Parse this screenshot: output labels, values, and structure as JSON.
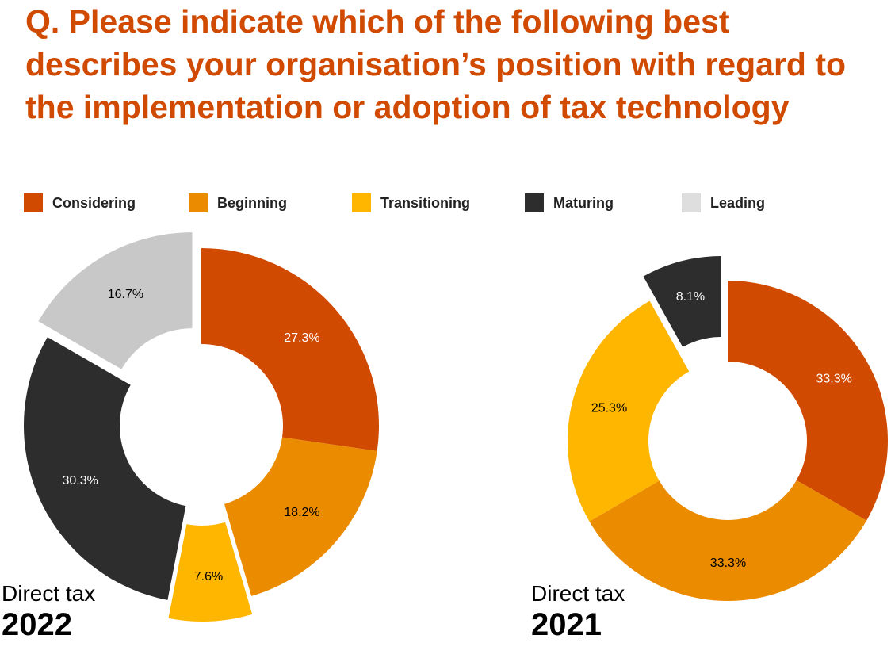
{
  "title": "Q. Please indicate which of the following best describes your organisation’s position with regard to the implementation or adoption of tax technology",
  "legend": [
    {
      "label": "Considering",
      "color": "#d04a02"
    },
    {
      "label": "Beginning",
      "color": "#eb8c00"
    },
    {
      "label": "Transitioning",
      "color": "#ffb600"
    },
    {
      "label": "Maturing",
      "color": "#2d2d2d"
    },
    {
      "label": "Leading",
      "color": "#dedede"
    }
  ],
  "charts": [
    {
      "subtitle": "Direct tax",
      "year": "2022"
    },
    {
      "subtitle": "Direct tax",
      "year": "2021"
    }
  ],
  "chart_data": [
    {
      "type": "pie",
      "title": "Direct tax 2022",
      "categories": [
        "Considering",
        "Beginning",
        "Transitioning",
        "Maturing",
        "Leading"
      ],
      "values": [
        27.3,
        18.2,
        7.6,
        30.3,
        16.7
      ],
      "labels": [
        "27.3%",
        "18.2%",
        "7.6%",
        "30.3%",
        "16.7%"
      ],
      "colors": [
        "#d04a02",
        "#eb8c00",
        "#ffb600",
        "#2d2d2d",
        "#c8c8c8"
      ],
      "label_colors": [
        "#ffffff",
        "#000000",
        "#000000",
        "#ffffff",
        "#000000"
      ],
      "exploded": [
        "Transitioning",
        "Leading"
      ],
      "donut": true
    },
    {
      "type": "pie",
      "title": "Direct tax 2021",
      "categories": [
        "Considering",
        "Beginning",
        "Transitioning",
        "Maturing"
      ],
      "values": [
        33.3,
        33.3,
        25.3,
        8.1
      ],
      "labels": [
        "33.3%",
        "33.3%",
        "25.3%",
        "8.1%"
      ],
      "colors": [
        "#d04a02",
        "#eb8c00",
        "#ffb600",
        "#2d2d2d"
      ],
      "label_colors": [
        "#ffffff",
        "#000000",
        "#000000",
        "#ffffff"
      ],
      "exploded": [
        "Maturing"
      ],
      "donut": true
    }
  ]
}
